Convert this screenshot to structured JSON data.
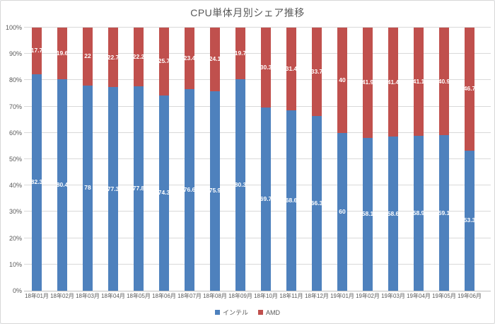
{
  "title": "CPU単体月別シェア推移",
  "colors": {
    "intel": "#4e81bd",
    "amd": "#c0504d",
    "gridline": "#d9d9d9",
    "axis_line": "#bfbfbf",
    "text": "#595959",
    "data_label": "#ffffff"
  },
  "chart_data": {
    "type": "bar",
    "subtype": "stacked-100",
    "title": "CPU単体月別シェア推移",
    "categories": [
      "18年01月",
      "18年02月",
      "18年03月",
      "18年04月",
      "18年05月",
      "18年06月",
      "18年07月",
      "18年08月",
      "18年09月",
      "18年10月",
      "18年11月",
      "18年12月",
      "19年01月",
      "19年02月",
      "19年03月",
      "19年04月",
      "19年05月",
      "19年06月"
    ],
    "series": [
      {
        "name": "インテル",
        "color": "#4e81bd",
        "values": [
          82.3,
          80.4,
          78,
          77.3,
          77.8,
          74.3,
          76.6,
          75.9,
          80.3,
          69.7,
          68.6,
          66.3,
          60,
          58.1,
          58.6,
          58.9,
          59.1,
          53.3
        ]
      },
      {
        "name": "AMD",
        "color": "#c0504d",
        "values": [
          17.7,
          19.6,
          22,
          22.7,
          22.2,
          25.7,
          23.4,
          24.1,
          19.7,
          30.3,
          31.4,
          33.7,
          40,
          41.9,
          41.4,
          41.1,
          40.9,
          46.7
        ]
      }
    ],
    "xlabel": "",
    "ylabel": "",
    "y_ticks": [
      "0%",
      "10%",
      "20%",
      "30%",
      "40%",
      "50%",
      "60%",
      "70%",
      "80%",
      "90%",
      "100%"
    ],
    "ylim": [
      0,
      100
    ],
    "grid": true,
    "legend_position": "bottom",
    "data_labels": "center"
  }
}
